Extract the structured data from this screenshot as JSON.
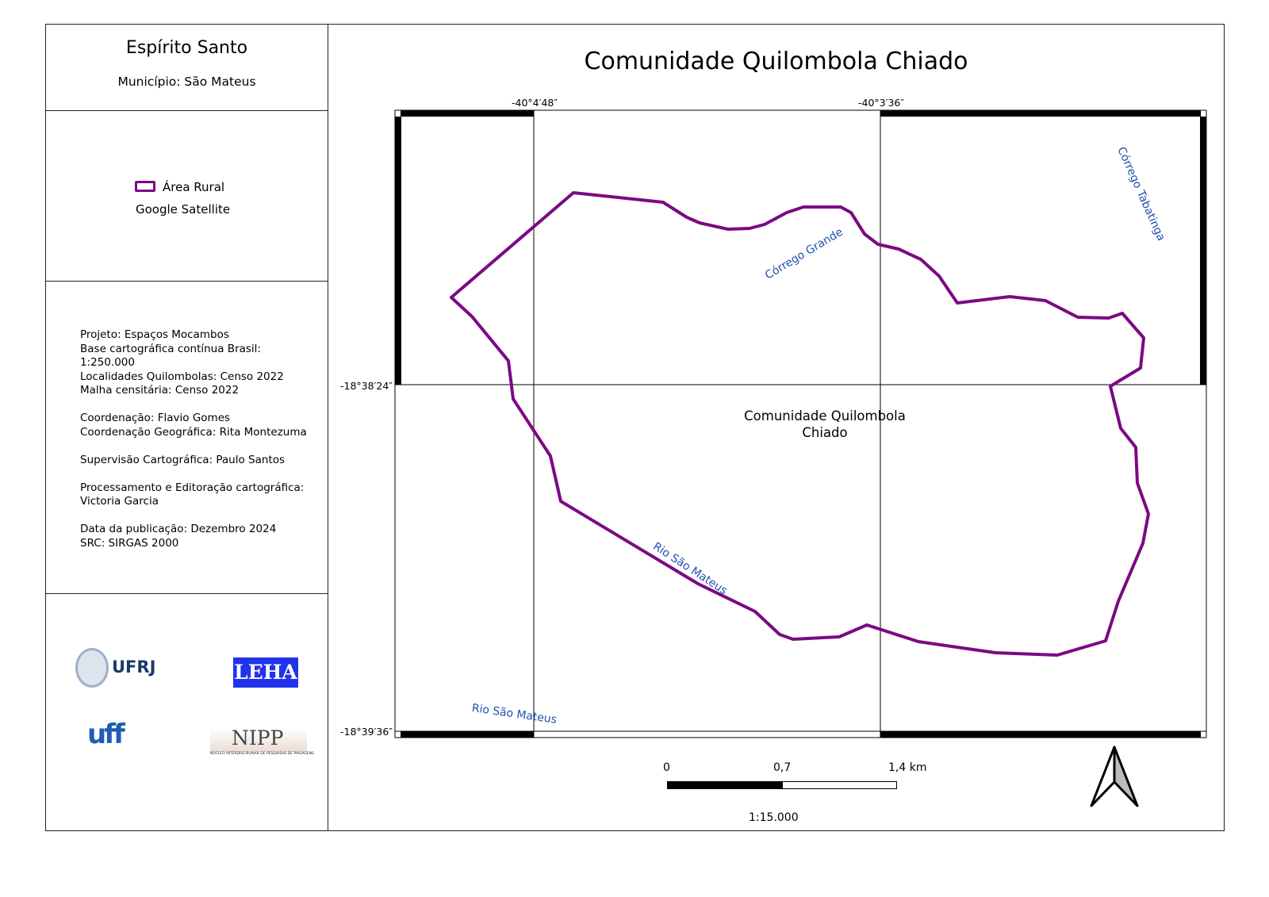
{
  "header": {
    "state": "Espírito Santo",
    "municipality": "Município: São Mateus"
  },
  "legend": {
    "item_label": "Área  Rural",
    "basemap": "Google Satellite",
    "polygon_color": "#7b0a83"
  },
  "metadata": [
    "Projeto: Espaços Mocambos",
    "Base cartográfica contínua Brasil:",
    "1:250.000",
    "Localidades Quilombolas: Censo 2022",
    "Malha censitária: Censo 2022",
    "",
    "Coordenação: Flavio Gomes",
    "Coordenação Geográfica: Rita Montezuma",
    "",
    "Supervisão Cartográfica: Paulo Santos",
    "",
    "Processamento  e Editoração cartográfica:",
    "Victoria Garcia",
    "",
    "Data da  publicação: Dezembro 2024",
    "SRC: SIRGAS 2000"
  ],
  "logos": {
    "ufrj": "UFRJ",
    "leha": "LEHA",
    "uff": "uff",
    "nipp": "NIPP",
    "nipp_sub": "NÚCLEO INTERDISCIPLINAR DE PESQUISAS DE PAISAGENS"
  },
  "map": {
    "title": "Comunidade Quilombola Chiado",
    "grid": {
      "lon": [
        "-40°4′48″",
        "-40°3′36″"
      ],
      "lat": [
        "-18°38′24″",
        "-18°39′36″"
      ]
    },
    "labels": {
      "community": [
        "Comunidade Quilombola",
        "Chiado"
      ],
      "corrego_grande": "Córrego Grande",
      "corrego_tabatinga": "Córrego Tabatinga",
      "rio_sao_mateus_1": "Rio São Mateus",
      "rio_sao_mateus_2": "Rio São Mateus"
    },
    "water_label_color": "#1f4fb0",
    "scalebar": {
      "ticks": [
        "0",
        "0,7",
        "1,4 km"
      ],
      "ratio": "1:15.000"
    }
  }
}
